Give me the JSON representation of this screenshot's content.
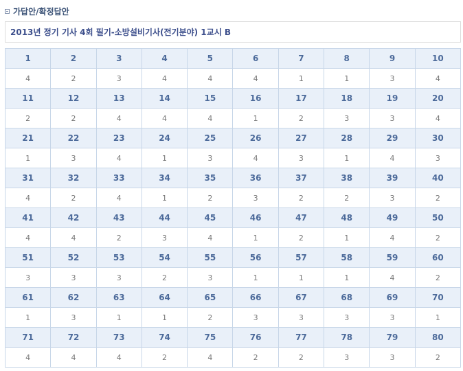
{
  "section": {
    "icon": "square-bullet-icon",
    "title": "가답안/확정답안"
  },
  "exam_title": "2013년 정기 기사 4회 필기-소방설비기사(전기분야) 1교시 B",
  "colors": {
    "header_bg": "#e9f0f9",
    "header_text": "#4c6a9a",
    "border": "#c7d6e8",
    "answer_text": "#777777"
  },
  "answers": [
    {
      "q": "1",
      "a": "4"
    },
    {
      "q": "2",
      "a": "2"
    },
    {
      "q": "3",
      "a": "3"
    },
    {
      "q": "4",
      "a": "4"
    },
    {
      "q": "5",
      "a": "4"
    },
    {
      "q": "6",
      "a": "4"
    },
    {
      "q": "7",
      "a": "1"
    },
    {
      "q": "8",
      "a": "1"
    },
    {
      "q": "9",
      "a": "3"
    },
    {
      "q": "10",
      "a": "4"
    },
    {
      "q": "11",
      "a": "2"
    },
    {
      "q": "12",
      "a": "2"
    },
    {
      "q": "13",
      "a": "4"
    },
    {
      "q": "14",
      "a": "4"
    },
    {
      "q": "15",
      "a": "4"
    },
    {
      "q": "16",
      "a": "1"
    },
    {
      "q": "17",
      "a": "2"
    },
    {
      "q": "18",
      "a": "3"
    },
    {
      "q": "19",
      "a": "3"
    },
    {
      "q": "20",
      "a": "4"
    },
    {
      "q": "21",
      "a": "1"
    },
    {
      "q": "22",
      "a": "3"
    },
    {
      "q": "23",
      "a": "4"
    },
    {
      "q": "24",
      "a": "1"
    },
    {
      "q": "25",
      "a": "3"
    },
    {
      "q": "26",
      "a": "4"
    },
    {
      "q": "27",
      "a": "3"
    },
    {
      "q": "28",
      "a": "1"
    },
    {
      "q": "29",
      "a": "4"
    },
    {
      "q": "30",
      "a": "3"
    },
    {
      "q": "31",
      "a": "4"
    },
    {
      "q": "32",
      "a": "2"
    },
    {
      "q": "33",
      "a": "4"
    },
    {
      "q": "34",
      "a": "1"
    },
    {
      "q": "35",
      "a": "2"
    },
    {
      "q": "36",
      "a": "3"
    },
    {
      "q": "37",
      "a": "2"
    },
    {
      "q": "38",
      "a": "2"
    },
    {
      "q": "39",
      "a": "3"
    },
    {
      "q": "40",
      "a": "2"
    },
    {
      "q": "41",
      "a": "4"
    },
    {
      "q": "42",
      "a": "4"
    },
    {
      "q": "43",
      "a": "2"
    },
    {
      "q": "44",
      "a": "3"
    },
    {
      "q": "45",
      "a": "4"
    },
    {
      "q": "46",
      "a": "1"
    },
    {
      "q": "47",
      "a": "2"
    },
    {
      "q": "48",
      "a": "1"
    },
    {
      "q": "49",
      "a": "4"
    },
    {
      "q": "50",
      "a": "2"
    },
    {
      "q": "51",
      "a": "3"
    },
    {
      "q": "52",
      "a": "3"
    },
    {
      "q": "53",
      "a": "3"
    },
    {
      "q": "54",
      "a": "2"
    },
    {
      "q": "55",
      "a": "3"
    },
    {
      "q": "56",
      "a": "1"
    },
    {
      "q": "57",
      "a": "1"
    },
    {
      "q": "58",
      "a": "1"
    },
    {
      "q": "59",
      "a": "4"
    },
    {
      "q": "60",
      "a": "2"
    },
    {
      "q": "61",
      "a": "1"
    },
    {
      "q": "62",
      "a": "3"
    },
    {
      "q": "63",
      "a": "1"
    },
    {
      "q": "64",
      "a": "1"
    },
    {
      "q": "65",
      "a": "2"
    },
    {
      "q": "66",
      "a": "3"
    },
    {
      "q": "67",
      "a": "3"
    },
    {
      "q": "68",
      "a": "3"
    },
    {
      "q": "69",
      "a": "3"
    },
    {
      "q": "70",
      "a": "1"
    },
    {
      "q": "71",
      "a": "4"
    },
    {
      "q": "72",
      "a": "4"
    },
    {
      "q": "73",
      "a": "4"
    },
    {
      "q": "74",
      "a": "2"
    },
    {
      "q": "75",
      "a": "4"
    },
    {
      "q": "76",
      "a": "2"
    },
    {
      "q": "77",
      "a": "2"
    },
    {
      "q": "78",
      "a": "3"
    },
    {
      "q": "79",
      "a": "3"
    },
    {
      "q": "80",
      "a": "2"
    }
  ]
}
